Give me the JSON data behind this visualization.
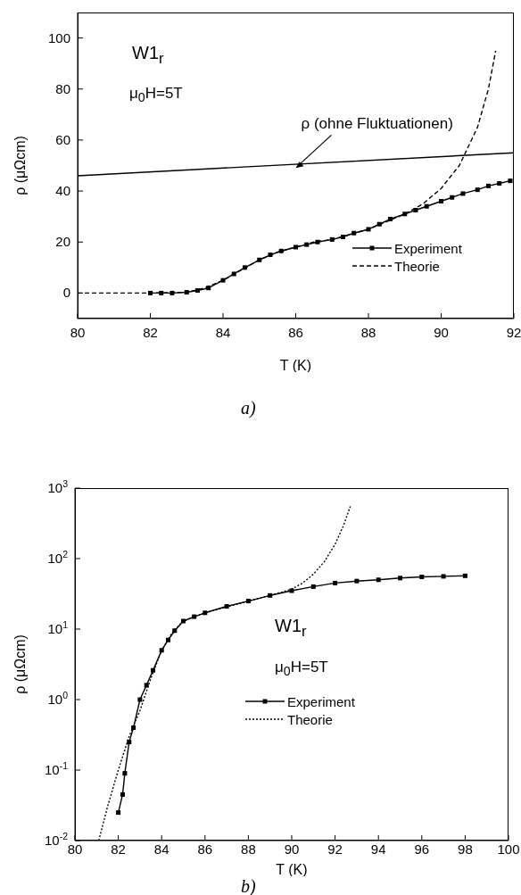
{
  "chart_data": [
    {
      "type": "line",
      "xlabel": "T (K)",
      "ylabel": "ρ (μΩcm)",
      "xlim": [
        80,
        92
      ],
      "xticks": [
        80,
        82,
        84,
        86,
        88,
        90,
        92
      ],
      "ylim": [
        -10,
        110
      ],
      "yticks": [
        0,
        20,
        40,
        60,
        80,
        100
      ],
      "grid": false,
      "legend": "bottom right",
      "annotations": [
        "W1$_{r}$",
        "μ$_{0}$H=5T",
        "a)",
        {
          "text": "ρ (ohne Fluktuationen)",
          "x": 86,
          "y": 49
        }
      ],
      "series": [
        {
          "name": "Experiment",
          "color": "#000000",
          "marker": "square",
          "line_style": "solid",
          "x": [
            82,
            82.3,
            82.6,
            83,
            83.3,
            83.6,
            84,
            84.3,
            84.6,
            85,
            85.3,
            85.6,
            86,
            86.3,
            86.6,
            87,
            87.3,
            87.6,
            88,
            88.3,
            88.6,
            89,
            89.3,
            89.6,
            90,
            90.3,
            90.6,
            91,
            91.3,
            91.6,
            91.9
          ],
          "values": [
            0,
            0,
            0,
            0.3,
            1,
            2,
            5,
            7.5,
            10,
            13,
            15,
            16.5,
            18,
            19,
            20,
            21,
            22,
            23.5,
            25,
            27,
            29,
            31,
            32.5,
            34,
            36,
            37.5,
            39,
            40.5,
            42,
            43,
            44
          ]
        },
        {
          "name": "Theorie",
          "color": "#000000",
          "marker": "none",
          "line_style": "dashed",
          "x": [
            80,
            81,
            82,
            83,
            83.5,
            84,
            84.5,
            85,
            85.5,
            86,
            86.5,
            87,
            87.5,
            88,
            88.5,
            89,
            89.5,
            90,
            90.5,
            91,
            91.3,
            91.5
          ],
          "values": [
            0,
            0,
            0,
            0.3,
            2,
            5,
            9,
            13,
            16,
            18,
            20,
            21,
            23,
            25,
            28,
            31,
            35,
            41,
            50,
            65,
            80,
            95
          ]
        },
        {
          "color": "#000000",
          "marker": "none",
          "line_style": "solid",
          "x": [
            80,
            92
          ],
          "values": [
            46,
            55
          ]
        }
      ]
    },
    {
      "type": "line",
      "xlabel": "T (K)",
      "ylabel": "ρ (μΩcm)",
      "log": "y",
      "xlim": [
        80,
        100
      ],
      "xticks": [
        80,
        82,
        84,
        86,
        88,
        90,
        92,
        94,
        96,
        98,
        100
      ],
      "ylim": [
        0.01,
        1000
      ],
      "yticks": [
        {
          "value": 0.01,
          "label": "10$^{-2}$"
        },
        {
          "value": 0.1,
          "label": "10$^{-1}$"
        },
        {
          "value": 1,
          "label": "10$^{0}$"
        },
        {
          "value": 10,
          "label": "10$^{1}$"
        },
        {
          "value": 100,
          "label": "10$^{2}$"
        },
        {
          "value": 1000,
          "label": "10$^{3}$"
        }
      ],
      "grid": false,
      "legend": "bottom",
      "annotations": [
        "W1$_{r}$",
        "μ$_{0}$H=5T",
        "b)"
      ],
      "series": [
        {
          "name": "Experiment",
          "color": "#000000",
          "marker": "square",
          "line_style": "solid",
          "x": [
            82,
            82.2,
            82.3,
            82.5,
            82.7,
            83,
            83.3,
            83.6,
            84,
            84.3,
            84.6,
            85,
            85.5,
            86,
            87,
            88,
            89,
            90,
            91,
            92,
            93,
            94,
            95,
            96,
            97,
            98
          ],
          "values": [
            0.025,
            0.045,
            0.09,
            0.25,
            0.4,
            1,
            1.6,
            2.6,
            5,
            7,
            9.5,
            13,
            15,
            17,
            21,
            25,
            30,
            35,
            40,
            45,
            48,
            50,
            53,
            55,
            56,
            57
          ]
        },
        {
          "name": "Theorie",
          "color": "#000000",
          "marker": "none",
          "line_style": "dotted",
          "x": [
            81.1,
            81.5,
            82,
            82.5,
            83,
            83.5,
            84,
            84.5,
            85,
            86,
            88,
            89.5,
            90,
            90.5,
            91,
            91.5,
            92,
            92.4,
            92.7
          ],
          "values": [
            0.01,
            0.03,
            0.1,
            0.3,
            0.7,
            2,
            5,
            9,
            13,
            17,
            25,
            33,
            37,
            45,
            60,
            90,
            160,
            300,
            550
          ]
        }
      ]
    }
  ]
}
